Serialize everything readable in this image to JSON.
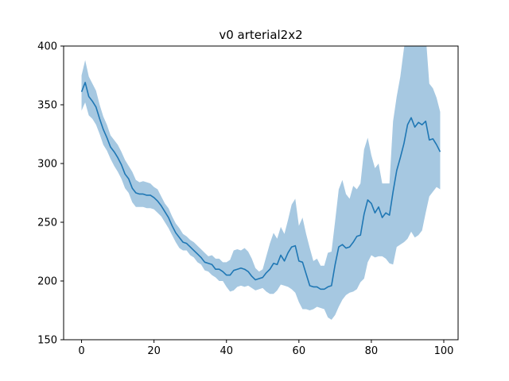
{
  "chart_data": {
    "type": "line",
    "title": "v0 arterial2x2",
    "xlabel": "",
    "ylabel": "",
    "xlim": [
      -4.95,
      103.95
    ],
    "ylim": [
      150,
      400
    ],
    "xticks": [
      0,
      20,
      40,
      60,
      80,
      100
    ],
    "yticks": [
      150,
      200,
      250,
      300,
      350,
      400
    ],
    "grid": false,
    "legend": "none",
    "colors": {
      "line": "#1f77b4",
      "band": "#a6c8e1"
    },
    "series": [
      {
        "x": [
          0,
          1,
          2,
          3,
          4,
          5,
          6,
          7,
          8,
          9,
          10,
          11,
          12,
          13,
          14,
          15,
          16,
          17,
          18,
          19,
          20,
          21,
          22,
          23,
          24,
          25,
          26,
          27,
          28,
          29,
          30,
          31,
          32,
          33,
          34,
          35,
          36,
          37,
          38,
          39,
          40,
          41,
          42,
          43,
          44,
          45,
          46,
          47,
          48,
          49,
          50,
          51,
          52,
          53,
          54,
          55,
          56,
          57,
          58,
          59,
          60,
          61,
          62,
          63,
          64,
          65,
          66,
          67,
          68,
          69,
          70,
          71,
          72,
          73,
          74,
          75,
          76,
          77,
          78,
          79,
          80,
          81,
          82,
          83,
          84,
          85,
          86,
          87,
          88,
          89,
          90,
          91,
          92,
          93,
          94,
          95,
          96,
          97,
          98,
          99
        ],
        "mean": [
          361,
          369,
          357,
          353,
          348,
          338,
          329,
          322,
          314,
          310,
          305,
          299,
          291,
          287,
          279,
          275,
          274,
          274,
          273,
          273,
          271,
          268,
          264,
          259,
          254,
          247,
          241,
          237,
          233,
          232,
          229,
          226,
          223,
          220,
          216,
          215,
          214,
          210,
          210,
          208,
          205,
          205,
          209,
          210,
          211,
          210,
          208,
          204,
          201,
          202,
          203,
          207,
          210,
          215,
          214,
          222,
          217,
          224,
          229,
          230,
          217,
          216,
          206,
          196,
          195,
          195,
          193,
          193,
          195,
          196,
          214,
          229,
          231,
          228,
          229,
          233,
          238,
          239,
          257,
          269,
          266,
          258,
          263,
          254,
          258,
          256,
          276,
          294,
          305,
          317,
          333,
          339,
          331,
          335,
          333,
          336,
          320,
          321,
          316,
          310
        ],
        "upper": [
          375,
          388,
          374,
          368,
          362,
          350,
          340,
          333,
          324,
          320,
          316,
          310,
          303,
          298,
          293,
          286,
          284,
          285,
          284,
          283,
          280,
          278,
          272,
          266,
          262,
          255,
          249,
          245,
          240,
          238,
          235,
          233,
          230,
          227,
          224,
          221,
          222,
          219,
          219,
          216,
          216,
          218,
          226,
          227,
          226,
          228,
          225,
          219,
          211,
          208,
          210,
          221,
          232,
          241,
          236,
          246,
          240,
          252,
          265,
          270,
          247,
          254,
          240,
          228,
          217,
          219,
          213,
          213,
          224,
          225,
          251,
          278,
          286,
          274,
          270,
          281,
          278,
          283,
          312,
          322,
          307,
          296,
          300,
          283,
          283,
          283,
          336,
          357,
          374,
          398,
          415,
          420,
          410,
          415,
          406,
          410,
          368,
          364,
          356,
          344
        ],
        "lower": [
          345,
          352,
          341,
          338,
          333,
          325,
          316,
          311,
          304,
          298,
          293,
          287,
          279,
          275,
          267,
          263,
          263,
          263,
          262,
          262,
          261,
          258,
          255,
          250,
          245,
          239,
          233,
          228,
          226,
          226,
          222,
          220,
          216,
          214,
          209,
          208,
          205,
          203,
          200,
          200,
          195,
          191,
          192,
          195,
          196,
          195,
          196,
          194,
          192,
          193,
          194,
          191,
          189,
          189,
          192,
          197,
          196,
          195,
          193,
          190,
          182,
          176,
          176,
          175,
          176,
          178,
          177,
          176,
          169,
          167,
          171,
          178,
          184,
          188,
          190,
          191,
          193,
          199,
          202,
          216,
          222,
          220,
          221,
          221,
          219,
          215,
          214,
          229,
          231,
          233,
          236,
          242,
          237,
          239,
          243,
          258,
          272,
          276,
          280,
          278
        ]
      }
    ]
  }
}
